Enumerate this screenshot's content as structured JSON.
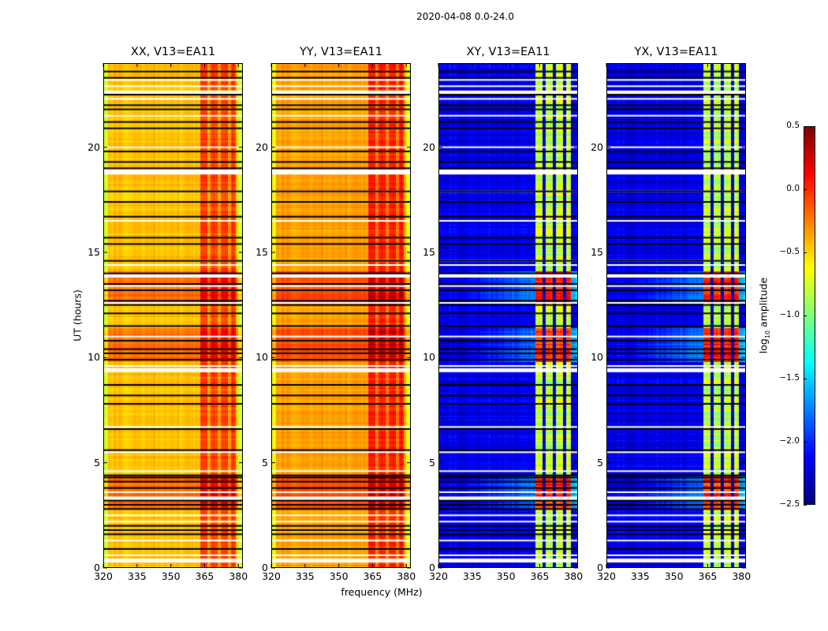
{
  "chart_data": {
    "type": "heatmap",
    "title": "2020-04-08 0.0-24.0",
    "xlabel": "frequency (MHz)",
    "ylabel": "UT (hours)",
    "xlim": [
      320,
      382
    ],
    "ylim": [
      0,
      24
    ],
    "xticks": [
      320,
      335,
      350,
      365,
      380
    ],
    "xtick_labels": [
      "320",
      "335",
      "350",
      "365",
      "380"
    ],
    "yticks": [
      0,
      5,
      10,
      15,
      20
    ],
    "ytick_labels": [
      "0",
      "5",
      "10",
      "15",
      "20"
    ],
    "panels": [
      {
        "title": "XX, V13=EA11",
        "baseline_level": -0.45,
        "band_level": -0.05,
        "kind": "parallel"
      },
      {
        "title": "YY, V13=EA11",
        "baseline_level": -0.35,
        "band_level": 0.05,
        "kind": "parallel"
      },
      {
        "title": "XY, V13=EA11",
        "baseline_level": -2.2,
        "band_level": -0.8,
        "kind": "cross"
      },
      {
        "title": "YX, V13=EA11",
        "baseline_level": -2.2,
        "band_level": -0.8,
        "kind": "cross"
      }
    ],
    "band_region_mhz": [
      363,
      379
    ],
    "band_gaps_mhz": [
      367,
      371.5,
      376
    ],
    "flagged_white_rows_hours": [
      0.35,
      0.6,
      1.3,
      2.2,
      2.5,
      3.3,
      3.6,
      4.6,
      5.5,
      6.7,
      9.4,
      9.6,
      11.0,
      12.6,
      13.4,
      13.9,
      14.4,
      14.6,
      16.5,
      17.9,
      18.8,
      18.9,
      20.0,
      21.5,
      22.3,
      22.6,
      22.9,
      23.2
    ],
    "black_gap_rows_hours": [
      0.9,
      1.6,
      1.8,
      2.0,
      2.8,
      3.0,
      3.2,
      3.8,
      4.1,
      4.3,
      4.4,
      5.6,
      6.6,
      7.8,
      8.2,
      8.7,
      9.9,
      10.2,
      10.4,
      10.8,
      11.5,
      12.1,
      12.5,
      12.7,
      13.2,
      13.5,
      14.0,
      14.6,
      15.4,
      15.7,
      16.7,
      17.4,
      17.9,
      19.0,
      19.3,
      19.8,
      20.9,
      21.2,
      21.8,
      22.0,
      22.5,
      23.3,
      23.6
    ],
    "colorbar": {
      "label": "log10 amplitude",
      "label_base": "log",
      "label_sub": "10",
      "label_rest": " amplitude",
      "colormap": "jet",
      "range": [
        -2.5,
        0.5
      ],
      "ticks": [
        0.5,
        0.0,
        -0.5,
        -1.0,
        -1.5,
        -2.0,
        -2.5
      ],
      "tick_labels": [
        "0.5",
        "0.0",
        "−0.5",
        "−1.0",
        "−1.5",
        "−2.0",
        "−2.5"
      ]
    }
  }
}
